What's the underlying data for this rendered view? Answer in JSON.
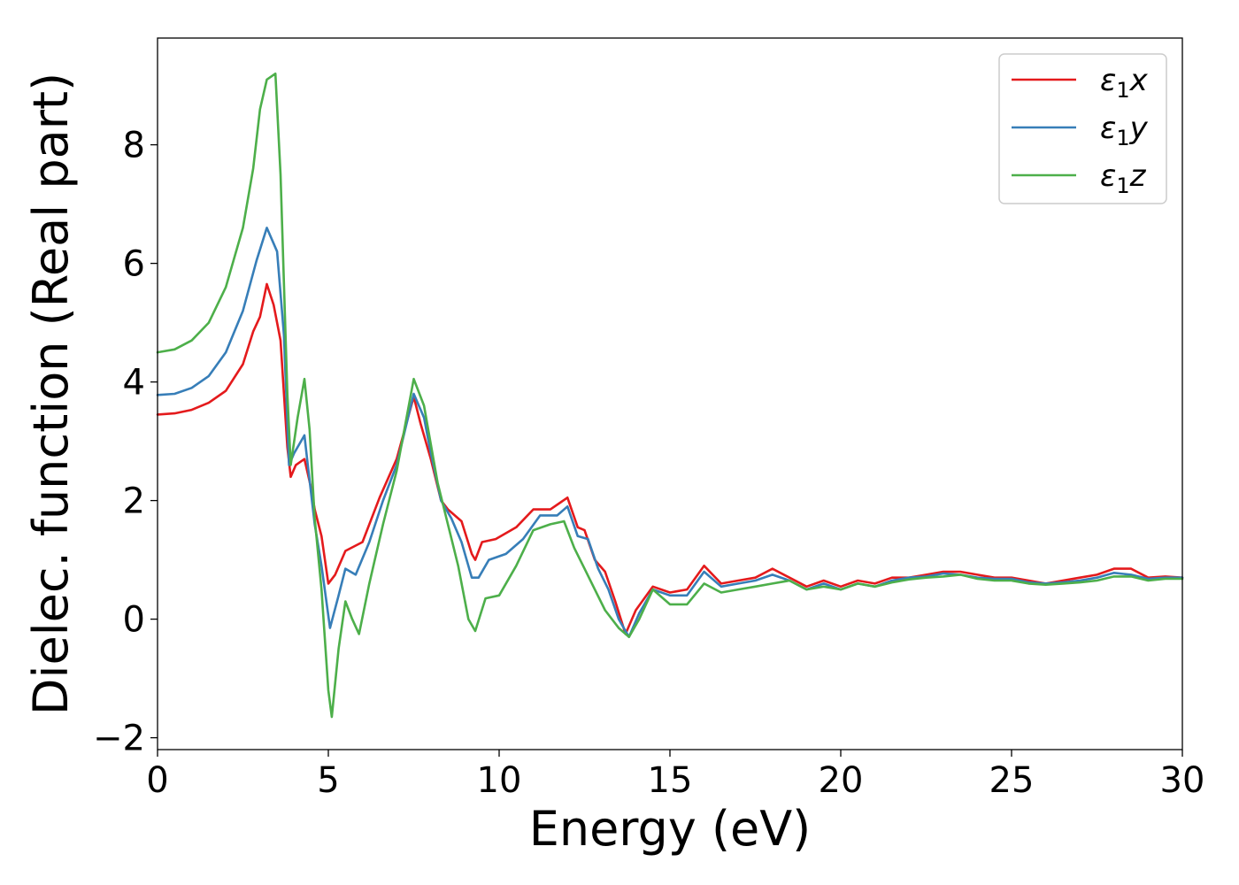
{
  "chart_data": {
    "type": "line",
    "title": "",
    "xlabel": "Energy (eV)",
    "ylabel": "Dielec. function (Real part)",
    "xlim": [
      0,
      30
    ],
    "ylim": [
      -2.2,
      9.8
    ],
    "x_ticks": [
      0,
      5,
      10,
      15,
      20,
      25,
      30
    ],
    "x_tick_labels": [
      "0",
      "5",
      "10",
      "15",
      "20",
      "25",
      "30"
    ],
    "y_ticks": [
      -2,
      0,
      2,
      4,
      6,
      8
    ],
    "y_tick_labels": [
      "−2",
      "0",
      "2",
      "4",
      "6",
      "8"
    ],
    "grid": false,
    "legend_position": "top-right",
    "series": [
      {
        "name": "ε₁x",
        "legend": {
          "base": "ε",
          "sub": "1",
          "var": "x"
        },
        "color": "#e41a1c",
        "points": [
          [
            0,
            3.45
          ],
          [
            0.5,
            3.47
          ],
          [
            1,
            3.53
          ],
          [
            1.5,
            3.65
          ],
          [
            2,
            3.85
          ],
          [
            2.5,
            4.3
          ],
          [
            2.8,
            4.85
          ],
          [
            3,
            5.1
          ],
          [
            3.2,
            5.65
          ],
          [
            3.4,
            5.3
          ],
          [
            3.6,
            4.7
          ],
          [
            3.8,
            2.9
          ],
          [
            3.9,
            2.4
          ],
          [
            4.05,
            2.6
          ],
          [
            4.3,
            2.7
          ],
          [
            4.5,
            2.2
          ],
          [
            4.6,
            1.85
          ],
          [
            4.8,
            1.4
          ],
          [
            5.0,
            0.6
          ],
          [
            5.2,
            0.75
          ],
          [
            5.5,
            1.15
          ],
          [
            6.0,
            1.3
          ],
          [
            6.5,
            2.05
          ],
          [
            7.0,
            2.7
          ],
          [
            7.5,
            3.75
          ],
          [
            7.7,
            3.3
          ],
          [
            8.0,
            2.7
          ],
          [
            8.3,
            2.0
          ],
          [
            8.5,
            1.85
          ],
          [
            8.9,
            1.65
          ],
          [
            9.2,
            1.1
          ],
          [
            9.3,
            1.0
          ],
          [
            9.5,
            1.3
          ],
          [
            9.9,
            1.35
          ],
          [
            10.5,
            1.55
          ],
          [
            11,
            1.85
          ],
          [
            11.5,
            1.85
          ],
          [
            12.0,
            2.05
          ],
          [
            12.3,
            1.55
          ],
          [
            12.5,
            1.5
          ],
          [
            12.8,
            1.0
          ],
          [
            13.1,
            0.8
          ],
          [
            13.4,
            0.3
          ],
          [
            13.7,
            -0.25
          ],
          [
            14.0,
            0.15
          ],
          [
            14.5,
            0.55
          ],
          [
            15.0,
            0.45
          ],
          [
            15.5,
            0.5
          ],
          [
            16.0,
            0.9
          ],
          [
            16.5,
            0.6
          ],
          [
            17,
            0.65
          ],
          [
            17.5,
            0.7
          ],
          [
            18.0,
            0.85
          ],
          [
            18.5,
            0.7
          ],
          [
            19.0,
            0.55
          ],
          [
            19.5,
            0.65
          ],
          [
            20,
            0.55
          ],
          [
            20.5,
            0.65
          ],
          [
            21,
            0.6
          ],
          [
            21.5,
            0.7
          ],
          [
            22,
            0.7
          ],
          [
            22.5,
            0.75
          ],
          [
            23,
            0.8
          ],
          [
            23.5,
            0.8
          ],
          [
            24,
            0.75
          ],
          [
            24.5,
            0.7
          ],
          [
            25,
            0.7
          ],
          [
            25.5,
            0.65
          ],
          [
            26,
            0.6
          ],
          [
            26.5,
            0.65
          ],
          [
            27,
            0.7
          ],
          [
            27.5,
            0.75
          ],
          [
            28,
            0.85
          ],
          [
            28.5,
            0.85
          ],
          [
            29,
            0.7
          ],
          [
            29.5,
            0.72
          ],
          [
            30,
            0.7
          ]
        ]
      },
      {
        "name": "ε₁y",
        "legend": {
          "base": "ε",
          "sub": "1",
          "var": "y"
        },
        "color": "#377eb8",
        "points": [
          [
            0,
            3.78
          ],
          [
            0.5,
            3.8
          ],
          [
            1,
            3.9
          ],
          [
            1.5,
            4.1
          ],
          [
            2,
            4.5
          ],
          [
            2.5,
            5.2
          ],
          [
            2.9,
            6.05
          ],
          [
            3.2,
            6.6
          ],
          [
            3.5,
            6.2
          ],
          [
            3.7,
            4.8
          ],
          [
            3.85,
            2.6
          ],
          [
            4.0,
            2.8
          ],
          [
            4.3,
            3.1
          ],
          [
            4.4,
            2.6
          ],
          [
            4.6,
            1.6
          ],
          [
            4.8,
            0.9
          ],
          [
            5.05,
            -0.15
          ],
          [
            5.3,
            0.4
          ],
          [
            5.5,
            0.85
          ],
          [
            5.8,
            0.75
          ],
          [
            6.2,
            1.3
          ],
          [
            6.6,
            2.0
          ],
          [
            7.0,
            2.6
          ],
          [
            7.5,
            3.8
          ],
          [
            7.8,
            3.4
          ],
          [
            8.0,
            2.8
          ],
          [
            8.3,
            2.0
          ],
          [
            8.6,
            1.7
          ],
          [
            8.9,
            1.3
          ],
          [
            9.2,
            0.7
          ],
          [
            9.4,
            0.7
          ],
          [
            9.7,
            1.0
          ],
          [
            10.2,
            1.1
          ],
          [
            10.7,
            1.35
          ],
          [
            11.2,
            1.75
          ],
          [
            11.7,
            1.75
          ],
          [
            12.0,
            1.9
          ],
          [
            12.3,
            1.4
          ],
          [
            12.6,
            1.35
          ],
          [
            12.9,
            0.85
          ],
          [
            13.2,
            0.5
          ],
          [
            13.5,
            0.0
          ],
          [
            13.8,
            -0.3
          ],
          [
            14.1,
            0.1
          ],
          [
            14.5,
            0.5
          ],
          [
            15,
            0.4
          ],
          [
            15.5,
            0.4
          ],
          [
            16,
            0.8
          ],
          [
            16.5,
            0.55
          ],
          [
            17,
            0.6
          ],
          [
            17.5,
            0.65
          ],
          [
            18,
            0.75
          ],
          [
            18.5,
            0.65
          ],
          [
            19,
            0.5
          ],
          [
            19.5,
            0.6
          ],
          [
            20,
            0.5
          ],
          [
            20.5,
            0.6
          ],
          [
            21,
            0.55
          ],
          [
            21.5,
            0.65
          ],
          [
            22,
            0.7
          ],
          [
            22.5,
            0.72
          ],
          [
            23,
            0.77
          ],
          [
            23.5,
            0.75
          ],
          [
            24,
            0.7
          ],
          [
            24.5,
            0.68
          ],
          [
            25,
            0.68
          ],
          [
            25.5,
            0.62
          ],
          [
            26,
            0.6
          ],
          [
            26.5,
            0.62
          ],
          [
            27,
            0.65
          ],
          [
            27.5,
            0.7
          ],
          [
            28,
            0.78
          ],
          [
            28.5,
            0.75
          ],
          [
            29,
            0.68
          ],
          [
            29.5,
            0.7
          ],
          [
            30,
            0.7
          ]
        ]
      },
      {
        "name": "ε₁z",
        "legend": {
          "base": "ε",
          "sub": "1",
          "var": "z"
        },
        "color": "#4daf4a",
        "points": [
          [
            0,
            4.5
          ],
          [
            0.5,
            4.55
          ],
          [
            1,
            4.7
          ],
          [
            1.5,
            5.0
          ],
          [
            2,
            5.6
          ],
          [
            2.5,
            6.6
          ],
          [
            2.8,
            7.6
          ],
          [
            3.0,
            8.6
          ],
          [
            3.2,
            9.1
          ],
          [
            3.45,
            9.2
          ],
          [
            3.6,
            7.5
          ],
          [
            3.8,
            3.8
          ],
          [
            3.9,
            2.6
          ],
          [
            4.1,
            3.4
          ],
          [
            4.3,
            4.05
          ],
          [
            4.45,
            3.2
          ],
          [
            4.6,
            1.7
          ],
          [
            4.8,
            0.5
          ],
          [
            5.0,
            -1.2
          ],
          [
            5.1,
            -1.65
          ],
          [
            5.3,
            -0.5
          ],
          [
            5.5,
            0.3
          ],
          [
            5.7,
            0.0
          ],
          [
            5.9,
            -0.25
          ],
          [
            6.2,
            0.6
          ],
          [
            6.6,
            1.6
          ],
          [
            7.0,
            2.5
          ],
          [
            7.5,
            4.05
          ],
          [
            7.8,
            3.6
          ],
          [
            8.2,
            2.3
          ],
          [
            8.5,
            1.6
          ],
          [
            8.8,
            0.9
          ],
          [
            9.1,
            0.0
          ],
          [
            9.3,
            -0.2
          ],
          [
            9.6,
            0.35
          ],
          [
            10.0,
            0.4
          ],
          [
            10.5,
            0.9
          ],
          [
            11.0,
            1.5
          ],
          [
            11.5,
            1.6
          ],
          [
            11.9,
            1.65
          ],
          [
            12.2,
            1.2
          ],
          [
            12.5,
            0.85
          ],
          [
            12.8,
            0.5
          ],
          [
            13.1,
            0.15
          ],
          [
            13.5,
            -0.15
          ],
          [
            13.8,
            -0.3
          ],
          [
            14.1,
            0.0
          ],
          [
            14.5,
            0.5
          ],
          [
            15,
            0.25
          ],
          [
            15.5,
            0.25
          ],
          [
            16,
            0.6
          ],
          [
            16.5,
            0.45
          ],
          [
            17,
            0.5
          ],
          [
            17.5,
            0.55
          ],
          [
            18,
            0.6
          ],
          [
            18.5,
            0.65
          ],
          [
            19,
            0.5
          ],
          [
            19.5,
            0.55
          ],
          [
            20,
            0.5
          ],
          [
            20.5,
            0.6
          ],
          [
            21,
            0.55
          ],
          [
            21.5,
            0.62
          ],
          [
            22,
            0.67
          ],
          [
            22.5,
            0.7
          ],
          [
            23,
            0.72
          ],
          [
            23.5,
            0.75
          ],
          [
            24,
            0.68
          ],
          [
            24.5,
            0.65
          ],
          [
            25,
            0.65
          ],
          [
            25.5,
            0.6
          ],
          [
            26,
            0.58
          ],
          [
            26.5,
            0.6
          ],
          [
            27,
            0.62
          ],
          [
            27.5,
            0.65
          ],
          [
            28,
            0.72
          ],
          [
            28.5,
            0.72
          ],
          [
            29,
            0.65
          ],
          [
            29.5,
            0.68
          ],
          [
            30,
            0.68
          ]
        ]
      }
    ]
  }
}
